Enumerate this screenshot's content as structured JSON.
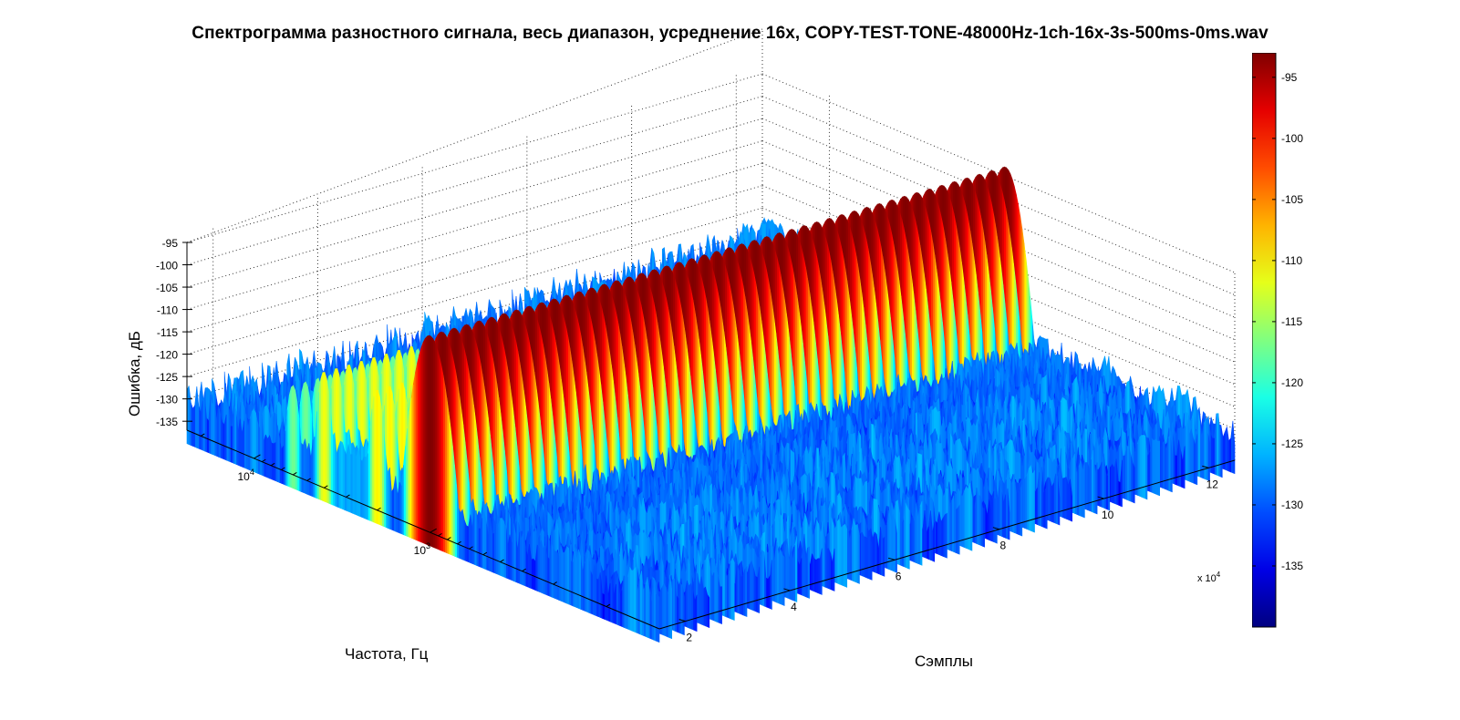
{
  "chart_data": {
    "type": "surface",
    "title": "Спектрограмма разностного сигнала, весь диапазон, усреднение 16x, COPY-TEST-TONE-48000Hz-1ch-16x-3s-500ms-0ms.wav",
    "zlabel": "Ошибка, дБ",
    "xlabel": "Частота, Гц",
    "ylabel": "Сэмплы",
    "z_ticks": [
      -95,
      -100,
      -105,
      -110,
      -115,
      -120,
      -125,
      -130,
      -135
    ],
    "z_range": [
      -140,
      -93
    ],
    "freq_scale": "log",
    "freq_ticks": [
      {
        "value": 1000,
        "label_base": "10",
        "label_exp": "3"
      },
      {
        "value": 10000,
        "label_base": "10",
        "label_exp": "4"
      }
    ],
    "sample_ticks": [
      2,
      4,
      6,
      8,
      10,
      12
    ],
    "sample_multiplier_base": "x 10",
    "sample_multiplier_exp": "4",
    "sample_range": [
      1.5,
      12.5
    ],
    "grid": true,
    "colormap": "jet",
    "colorbar_ticks": [
      -95,
      -100,
      -105,
      -110,
      -115,
      -120,
      -125,
      -130,
      -135
    ],
    "colorbar_range": [
      -140,
      -93
    ],
    "peaks": [
      {
        "frequency_hz": 1000,
        "level_db": -93
      },
      {
        "frequency_hz": 2000,
        "level_db": -110
      },
      {
        "frequency_hz": 4000,
        "level_db": -111
      },
      {
        "frequency_hz": 6000,
        "level_db": -117
      },
      {
        "frequency_hz": 10000,
        "level_db": -126
      }
    ],
    "noise_floor_db": -130
  }
}
